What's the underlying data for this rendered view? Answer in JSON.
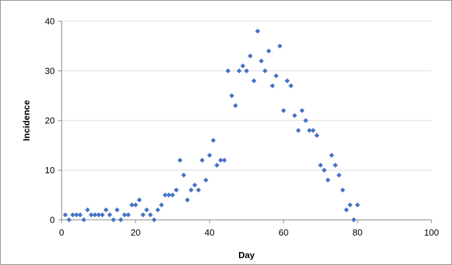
{
  "chart_data": {
    "type": "scatter",
    "title": "",
    "xlabel": "Day",
    "ylabel": "Incidence",
    "xlim": [
      0,
      100
    ],
    "ylim": [
      0,
      40
    ],
    "x_ticks": [
      0,
      20,
      40,
      60,
      80,
      100
    ],
    "y_ticks": [
      0,
      10,
      20,
      30,
      40
    ],
    "grid": "horizontal",
    "legend": "none",
    "marker": "diamond",
    "color": "#4472C4",
    "series": [
      {
        "x": [
          1,
          2,
          3,
          4,
          5,
          6,
          7,
          8,
          9,
          10,
          11,
          12,
          13,
          14,
          15,
          16,
          17,
          18,
          19,
          20,
          21,
          22,
          23,
          24,
          25,
          26,
          27,
          28,
          29,
          30,
          31,
          32,
          33,
          34,
          35,
          36,
          37,
          38,
          39,
          40,
          41,
          42,
          43,
          44,
          45,
          46,
          47,
          48,
          49,
          50,
          51,
          52,
          53,
          54,
          55,
          56,
          57,
          58,
          59,
          60,
          61,
          62,
          63,
          64,
          65,
          66,
          67,
          68,
          69,
          70,
          71,
          72,
          73,
          74,
          75,
          76,
          77,
          78,
          79,
          80
        ],
        "y": [
          1,
          0,
          1,
          1,
          1,
          0,
          2,
          1,
          1,
          1,
          1,
          2,
          1,
          0,
          2,
          0,
          1,
          1,
          3,
          3,
          4,
          1,
          2,
          1,
          0,
          2,
          3,
          5,
          5,
          5,
          6,
          12,
          9,
          4,
          6,
          7,
          6,
          12,
          8,
          13,
          16,
          11,
          12,
          12,
          30,
          25,
          23,
          30,
          31,
          30,
          33,
          28,
          38,
          32,
          30,
          34,
          27,
          29,
          35,
          22,
          28,
          27,
          21,
          18,
          22,
          20,
          18,
          18,
          17,
          11,
          10,
          8,
          13,
          11,
          9,
          6,
          2,
          3,
          0,
          3
        ]
      }
    ]
  }
}
